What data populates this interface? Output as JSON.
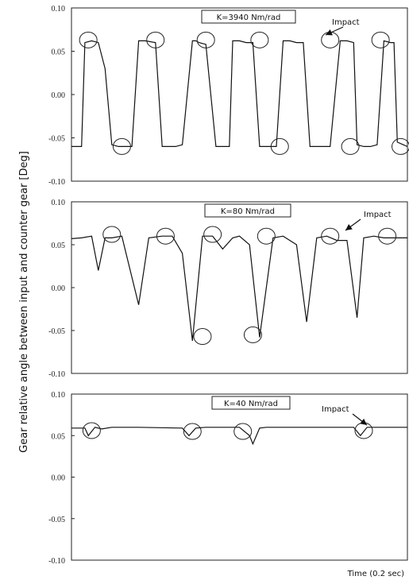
{
  "figure": {
    "ylabel": "Gear relative angle between input and counter gear [Deg]",
    "xlabel": "Time (0.2 sec)"
  },
  "chart_data": [
    {
      "type": "line",
      "label": "K=3940 Nm/rad",
      "annotation": "Impact",
      "ylim": [
        -0.1,
        0.1
      ],
      "yticks": [
        "0.10",
        "0.05",
        "0.00",
        "-0.05",
        "-0.10"
      ],
      "grid": false,
      "x": [
        0.0,
        0.03,
        0.04,
        0.06,
        0.08,
        0.1,
        0.12,
        0.14,
        0.18,
        0.2,
        0.22,
        0.25,
        0.27,
        0.29,
        0.31,
        0.33,
        0.36,
        0.37,
        0.38,
        0.4,
        0.43,
        0.45,
        0.47,
        0.48,
        0.5,
        0.52,
        0.54,
        0.56,
        0.58,
        0.6,
        0.61,
        0.63,
        0.65,
        0.67,
        0.69,
        0.71,
        0.72,
        0.74,
        0.77,
        0.8,
        0.82,
        0.84,
        0.85,
        0.87,
        0.89,
        0.91,
        0.93,
        0.95,
        0.96,
        0.97,
        1.0
      ],
      "y": [
        -0.06,
        -0.06,
        0.06,
        0.062,
        0.06,
        0.03,
        -0.058,
        -0.06,
        -0.06,
        0.062,
        0.062,
        0.06,
        -0.06,
        -0.06,
        -0.06,
        -0.058,
        0.062,
        0.062,
        0.06,
        0.058,
        -0.06,
        -0.06,
        -0.06,
        0.062,
        0.062,
        0.06,
        0.06,
        -0.06,
        -0.06,
        -0.06,
        -0.06,
        0.062,
        0.062,
        0.06,
        0.06,
        -0.06,
        -0.06,
        -0.06,
        -0.06,
        0.062,
        0.062,
        0.06,
        -0.058,
        -0.06,
        -0.06,
        -0.058,
        0.062,
        0.06,
        0.06,
        -0.055,
        -0.06
      ],
      "impact_regions": [
        {
          "x": 0.05,
          "y": 0.063
        },
        {
          "x": 0.15,
          "y": -0.06
        },
        {
          "x": 0.25,
          "y": 0.063
        },
        {
          "x": 0.4,
          "y": 0.063
        },
        {
          "x": 0.56,
          "y": 0.063
        },
        {
          "x": 0.62,
          "y": -0.06
        },
        {
          "x": 0.77,
          "y": 0.063
        },
        {
          "x": 0.83,
          "y": -0.06
        },
        {
          "x": 0.92,
          "y": 0.063
        },
        {
          "x": 0.98,
          "y": -0.06
        }
      ]
    },
    {
      "type": "line",
      "label": "K=80 Nm/rad",
      "annotation": "Impact",
      "ylim": [
        -0.1,
        0.1
      ],
      "yticks": [
        "0.10",
        "0.05",
        "0.00",
        "-0.05",
        "-0.10"
      ],
      "grid": false,
      "x": [
        0.0,
        0.03,
        0.06,
        0.08,
        0.1,
        0.12,
        0.15,
        0.2,
        0.23,
        0.27,
        0.3,
        0.33,
        0.36,
        0.39,
        0.42,
        0.45,
        0.48,
        0.5,
        0.53,
        0.56,
        0.6,
        0.63,
        0.67,
        0.7,
        0.73,
        0.76,
        0.79,
        0.82,
        0.85,
        0.87,
        0.9,
        0.93,
        0.96,
        1.0
      ],
      "y": [
        0.057,
        0.058,
        0.06,
        0.02,
        0.058,
        0.058,
        0.06,
        -0.02,
        0.058,
        0.06,
        0.06,
        0.04,
        -0.062,
        0.06,
        0.06,
        0.045,
        0.058,
        0.06,
        0.05,
        -0.058,
        0.058,
        0.06,
        0.05,
        -0.04,
        0.058,
        0.06,
        0.055,
        0.055,
        -0.035,
        0.058,
        0.06,
        0.058,
        0.058,
        0.058
      ],
      "impact_regions": [
        {
          "x": 0.12,
          "y": 0.062
        },
        {
          "x": 0.28,
          "y": 0.06
        },
        {
          "x": 0.42,
          "y": 0.062
        },
        {
          "x": 0.39,
          "y": -0.057
        },
        {
          "x": 0.58,
          "y": 0.06
        },
        {
          "x": 0.54,
          "y": -0.055
        },
        {
          "x": 0.77,
          "y": 0.06
        },
        {
          "x": 0.94,
          "y": 0.06
        }
      ]
    },
    {
      "type": "line",
      "label": "K=40 Nm/rad",
      "annotation": "Impact",
      "ylim": [
        -0.1,
        0.1
      ],
      "yticks": [
        "0.10",
        "0.05",
        "0.00",
        "-0.05",
        "-0.10"
      ],
      "grid": false,
      "x": [
        0.0,
        0.04,
        0.05,
        0.07,
        0.09,
        0.12,
        0.2,
        0.33,
        0.35,
        0.37,
        0.4,
        0.5,
        0.53,
        0.54,
        0.56,
        0.58,
        0.6,
        0.7,
        0.84,
        0.86,
        0.88,
        0.9,
        1.0
      ],
      "y": [
        0.059,
        0.059,
        0.05,
        0.06,
        0.058,
        0.06,
        0.06,
        0.059,
        0.05,
        0.059,
        0.06,
        0.06,
        0.05,
        0.04,
        0.059,
        0.06,
        0.06,
        0.06,
        0.06,
        0.05,
        0.06,
        0.06,
        0.06
      ],
      "impact_regions": [
        {
          "x": 0.06,
          "y": 0.056
        },
        {
          "x": 0.36,
          "y": 0.055
        },
        {
          "x": 0.51,
          "y": 0.055
        },
        {
          "x": 0.87,
          "y": 0.056
        }
      ]
    }
  ]
}
